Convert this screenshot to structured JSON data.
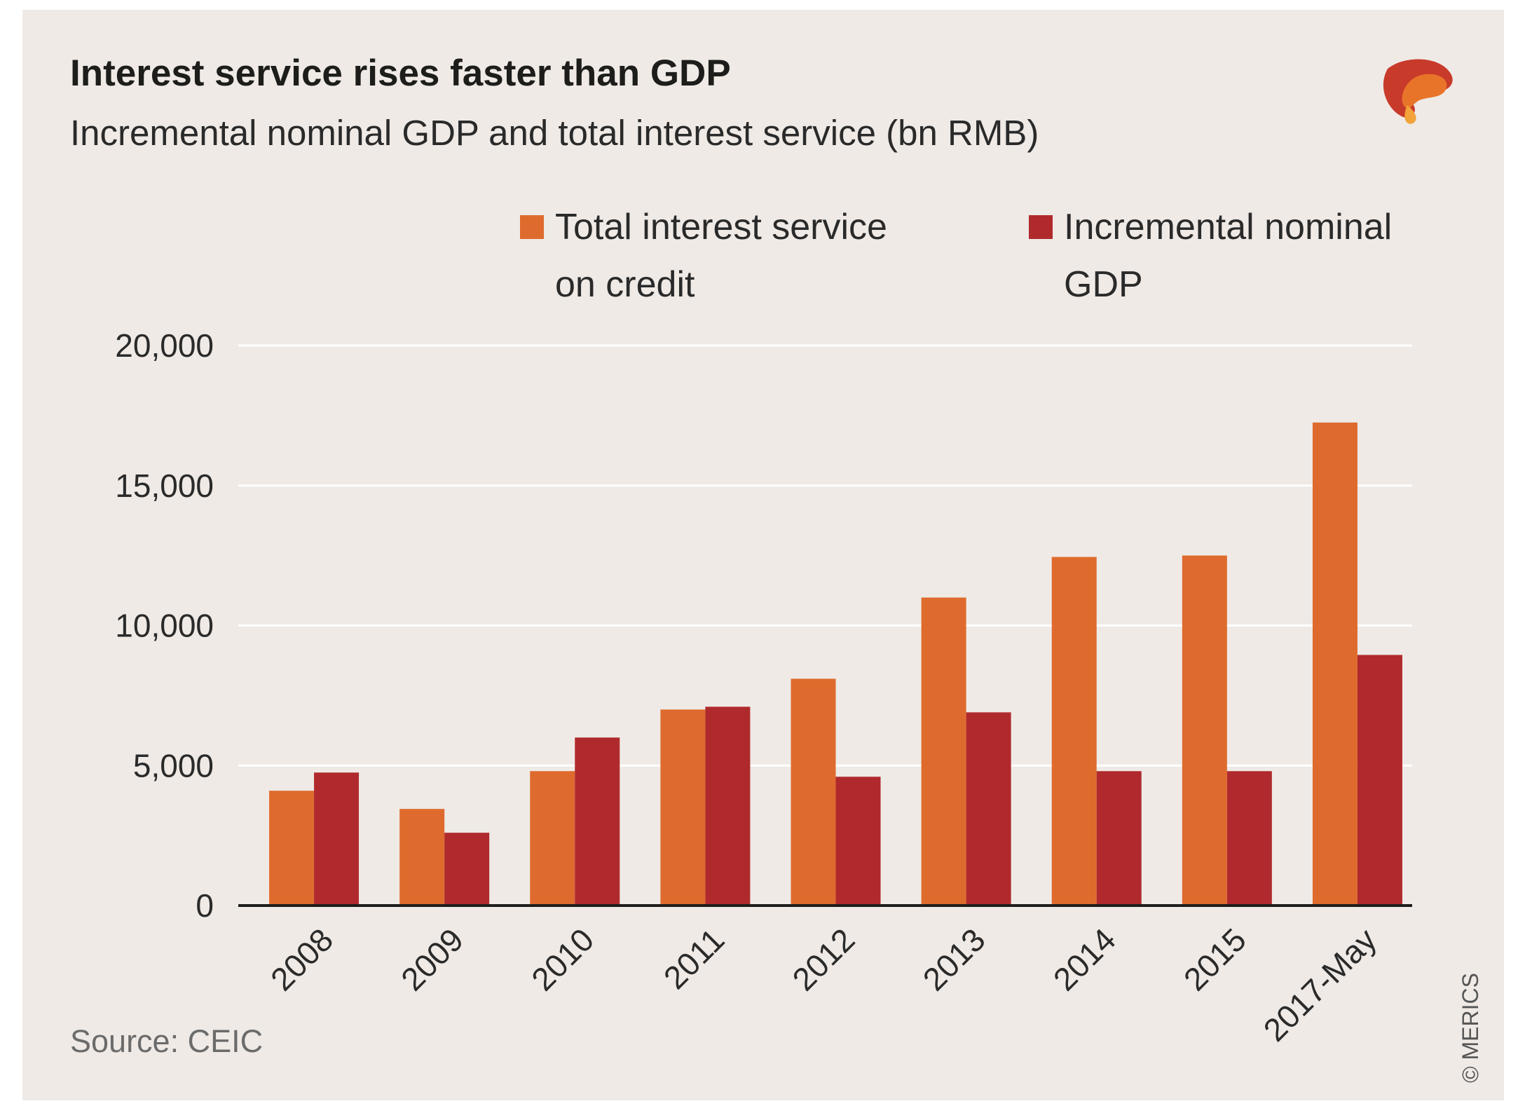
{
  "header": {
    "title": "Interest service rises faster than GDP",
    "subtitle": "Incremental nominal GDP and total interest service (bn RMB)"
  },
  "logo": {
    "icon": "merics-logo-icon",
    "colors": [
      "#c83a2a",
      "#e8742a",
      "#f2a33a"
    ]
  },
  "footer": {
    "source": "Source: CEIC",
    "copyright": "© MERICS"
  },
  "chart_data": {
    "type": "bar",
    "title": "Interest service rises faster than GDP",
    "subtitle": "Incremental nominal GDP and total interest service (bn RMB)",
    "categories": [
      "2008",
      "2009",
      "2010",
      "2011",
      "2012",
      "2013",
      "2014",
      "2015",
      "2017-May"
    ],
    "series": [
      {
        "name": "Total interest service on credit",
        "legend_lines": [
          "Total interest service",
          "on credit"
        ],
        "color": "#de6b2d",
        "values": [
          4100,
          3450,
          4800,
          7000,
          8100,
          11000,
          12450,
          12500,
          17250
        ]
      },
      {
        "name": "Incremental nominal GDP",
        "legend_lines": [
          "Incremental nominal",
          "GDP"
        ],
        "color": "#b02a2d",
        "values": [
          4750,
          2600,
          6000,
          7100,
          4600,
          6900,
          4800,
          4800,
          8950
        ]
      }
    ],
    "ylim": [
      0,
      20000
    ],
    "yticks": [
      0,
      5000,
      10000,
      15000,
      20000
    ],
    "ytick_labels": [
      "0",
      "5,000",
      "10,000",
      "15,000",
      "20,000"
    ],
    "xlabel": "",
    "ylabel": "",
    "grid": true,
    "legend_position": "top"
  }
}
